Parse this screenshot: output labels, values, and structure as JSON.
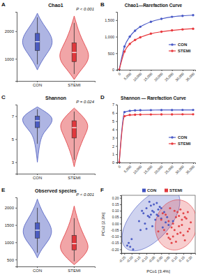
{
  "chart_data": [
    {
      "panel": "A",
      "type": "violin",
      "title": "Chao1",
      "annotation": "P < 0.001",
      "categories": [
        "CON",
        "STEMI"
      ],
      "colors": [
        "#4b5bc0",
        "#e0373c"
      ],
      "ylim": [
        200,
        2700
      ],
      "yticks": [
        1000,
        2000
      ],
      "violins": [
        {
          "density": {
            "y": [
              600,
              900,
              1200,
              1500,
              1800,
              2100,
              2400,
              2650
            ],
            "width": [
              0,
              0.25,
              0.6,
              0.95,
              0.9,
              0.55,
              0.2,
              0
            ]
          },
          "box": {
            "whisker_low": 800,
            "q1": 1300,
            "median": 1620,
            "q3": 1920,
            "whisker_high": 2500
          }
        },
        {
          "density": {
            "y": [
              250,
              550,
              850,
              1150,
              1450,
              1750,
              2050,
              2350,
              2550
            ],
            "width": [
              0,
              0.35,
              0.8,
              0.95,
              0.7,
              0.45,
              0.25,
              0.1,
              0
            ]
          },
          "box": {
            "whisker_low": 450,
            "q1": 900,
            "median": 1230,
            "q3": 1580,
            "whisker_high": 2300
          }
        }
      ]
    },
    {
      "panel": "B",
      "type": "line",
      "title": "Chao1—Rarefaction Curve",
      "legend": "right",
      "x": [
        0,
        2500,
        5000,
        7500,
        10000,
        15000,
        20000,
        25000,
        30000,
        35000
      ],
      "xlim": [
        -1000,
        36000
      ],
      "xticks": [
        0,
        {
          "value": 5000,
          "label": "5,000"
        },
        {
          "value": 10000,
          "label": "10,000"
        },
        {
          "value": 15000,
          "label": "15,000"
        },
        {
          "value": 20000,
          "label": "20,000"
        },
        {
          "value": 25000,
          "label": "25,000"
        },
        {
          "value": 30000,
          "label": "30,000"
        },
        {
          "value": 35000,
          "label": "35,000"
        }
      ],
      "ylim": [
        0,
        1750
      ],
      "yticks": [
        0,
        500,
        {
          "value": 1000,
          "label": "1,000"
        },
        {
          "value": 1500,
          "label": "1,500"
        }
      ],
      "series": [
        {
          "name": "CON",
          "color": "#4a5ac7",
          "marker": "circle",
          "values": [
            0,
            700,
            1000,
            1180,
            1300,
            1450,
            1540,
            1600,
            1630,
            1650
          ]
        },
        {
          "name": "STEMI",
          "color": "#e8383d",
          "marker": "circle",
          "values": [
            0,
            550,
            780,
            900,
            980,
            1090,
            1150,
            1190,
            1220,
            1240
          ]
        }
      ]
    },
    {
      "panel": "C",
      "type": "violin",
      "title": "Shannon",
      "annotation": "P = 0.024",
      "categories": [
        "CON",
        "STEMI"
      ],
      "colors": [
        "#4b5bc0",
        "#e0373c"
      ],
      "ylim": [
        2,
        8
      ],
      "yticks": [
        3,
        5,
        7
      ],
      "violins": [
        {
          "density": {
            "y": [
              3.0,
              4.0,
              5.0,
              5.6,
              6.2,
              6.8,
              7.3,
              7.8
            ],
            "width": [
              0,
              0.08,
              0.2,
              0.4,
              0.8,
              1.0,
              0.6,
              0
            ]
          },
          "box": {
            "whisker_low": 4.6,
            "q1": 6.0,
            "median": 6.6,
            "q3": 7.0,
            "whisker_high": 7.6
          }
        },
        {
          "density": {
            "y": [
              2.6,
              3.5,
              4.3,
              5.0,
              5.6,
              6.2,
              6.8,
              7.3,
              7.7
            ],
            "width": [
              0,
              0.15,
              0.35,
              0.55,
              0.75,
              0.9,
              0.65,
              0.3,
              0
            ]
          },
          "box": {
            "whisker_low": 3.2,
            "q1": 5.1,
            "median": 6.0,
            "q3": 6.6,
            "whisker_high": 7.4
          }
        }
      ]
    },
    {
      "panel": "D",
      "type": "line",
      "title": "Shannon — Rarefaction Curve",
      "legend": "right",
      "x": [
        0,
        2500,
        5000,
        7500,
        10000,
        15000,
        20000,
        25000,
        30000,
        35000
      ],
      "xlim": [
        -1000,
        36000
      ],
      "xticks": [
        0,
        {
          "value": 5000,
          "label": "5,000"
        },
        {
          "value": 10000,
          "label": "10,000"
        },
        {
          "value": 15000,
          "label": "15,000"
        },
        {
          "value": 20000,
          "label": "20,000"
        },
        {
          "value": 25000,
          "label": "25,000"
        },
        {
          "value": 30000,
          "label": "30,000"
        },
        {
          "value": 35000,
          "label": "35,000"
        }
      ],
      "ylim": [
        0,
        7
      ],
      "yticks": [
        0,
        1,
        2,
        3,
        4,
        5,
        6,
        7
      ],
      "series": [
        {
          "name": "CON",
          "color": "#4a5ac7",
          "marker": "circle",
          "values": [
            0,
            6.1,
            6.25,
            6.3,
            6.32,
            6.34,
            6.35,
            6.35,
            6.36,
            6.36
          ]
        },
        {
          "name": "STEMI",
          "color": "#e8383d",
          "marker": "circle",
          "values": [
            0,
            5.6,
            5.75,
            5.78,
            5.8,
            5.81,
            5.82,
            5.82,
            5.83,
            5.83
          ]
        }
      ]
    },
    {
      "panel": "E",
      "type": "violin",
      "title": "Observed species",
      "annotation": "P < 0.001",
      "categories": [
        "CON",
        "STEMI"
      ],
      "colors": [
        "#4b5bc0",
        "#e0373c"
      ],
      "ylim": [
        300,
        2300
      ],
      "yticks": [
        500,
        1000,
        1500,
        2000
      ],
      "violins": [
        {
          "density": {
            "y": [
              550,
              800,
              1050,
              1300,
              1550,
              1800,
              2050,
              2250
            ],
            "width": [
              0,
              0.25,
              0.7,
              0.95,
              0.75,
              0.4,
              0.15,
              0
            ]
          },
          "box": {
            "whisker_low": 700,
            "q1": 1120,
            "median": 1350,
            "q3": 1560,
            "whisker_high": 2000
          }
        },
        {
          "density": {
            "y": [
              350,
              600,
              850,
              1100,
              1350,
              1600,
              1850,
              2050
            ],
            "width": [
              0,
              0.6,
              0.95,
              0.7,
              0.45,
              0.25,
              0.1,
              0
            ]
          },
          "box": {
            "whisker_low": 450,
            "q1": 780,
            "median": 960,
            "q3": 1200,
            "whisker_high": 1700
          }
        }
      ]
    },
    {
      "panel": "F",
      "type": "scatter",
      "x_label": "PCo1 [3.4%]",
      "y_label": "PCo2 [2.3%]",
      "legend": "top",
      "xlim": [
        -0.27,
        0.23
      ],
      "xticks": [
        -0.25,
        {
          "value": -0.2,
          "label": "-0.20"
        },
        -0.15,
        {
          "value": -0.1,
          "label": "-0.10"
        },
        -0.05,
        {
          "value": 0,
          "label": "0.00"
        },
        0.05,
        {
          "value": 0.1,
          "label": "0.10"
        },
        0.15,
        {
          "value": 0.2,
          "label": "0.20"
        }
      ],
      "ylim": [
        -0.23,
        0.22
      ],
      "yticks": [
        {
          "value": -0.2,
          "label": "-0.20"
        },
        -0.15,
        {
          "value": -0.1,
          "label": "-0.10"
        },
        -0.05,
        {
          "value": 0,
          "label": "0.00"
        },
        0.05,
        {
          "value": 0.1,
          "label": "0.10"
        },
        0.15,
        {
          "value": 0.2,
          "label": "0.20"
        }
      ],
      "series": [
        {
          "name": "CON",
          "color": "#3f51c0",
          "marker": "circle",
          "x": [
            -0.22,
            -0.21,
            -0.19,
            -0.23,
            -0.2,
            -0.15,
            -0.12,
            -0.1,
            -0.08,
            -0.06,
            -0.05,
            -0.03,
            -0.02,
            0.0,
            0.02,
            -0.11,
            -0.09,
            -0.07,
            -0.04,
            -0.01,
            0.03,
            -0.13,
            -0.06,
            -0.08,
            -0.02,
            0.01,
            -0.05,
            -0.1,
            0.05,
            0.08,
            -0.03,
            -0.14,
            0.0,
            -0.07,
            0.04
          ],
          "values": [
            -0.15,
            -0.18,
            -0.2,
            -0.17,
            -0.12,
            0.02,
            0.08,
            0.12,
            0.05,
            0.1,
            0.15,
            0.07,
            0.11,
            0.04,
            0.09,
            0.0,
            0.06,
            0.14,
            0.03,
            0.13,
            0.01,
            0.1,
            -0.02,
            0.17,
            0.06,
            -0.03,
            0.09,
            -0.04,
            -0.01,
            0.02,
            0.16,
            -0.05,
            0.12,
            0.07,
            0.05
          ]
        },
        {
          "name": "STEMI",
          "color": "#e0373c",
          "marker": "circle",
          "x": [
            0.02,
            0.05,
            0.08,
            0.1,
            0.12,
            0.15,
            0.18,
            0.2,
            0.06,
            0.09,
            0.11,
            0.14,
            0.16,
            0.03,
            0.07,
            0.13,
            0.17,
            0.19,
            0.04,
            0.1,
            0.12,
            0.08,
            0.15,
            -0.02,
            0.0,
            0.06,
            0.11,
            0.14,
            0.18,
            0.09,
            0.05,
            0.13,
            0.16,
            0.01,
            0.07
          ],
          "values": [
            -0.05,
            0.02,
            -0.1,
            0.05,
            -0.02,
            0.08,
            -0.06,
            0.01,
            -0.12,
            0.1,
            -0.08,
            0.03,
            -0.13,
            0.07,
            -0.03,
            0.11,
            0.04,
            -0.04,
            -0.08,
            -0.14,
            0.06,
            0.0,
            -0.09,
            -0.06,
            0.03,
            0.12,
            0.09,
            -0.01,
            0.09,
            -0.05,
            -0.11,
            -0.07,
            0.05,
            0.08,
            -0.15
          ]
        }
      ]
    }
  ]
}
